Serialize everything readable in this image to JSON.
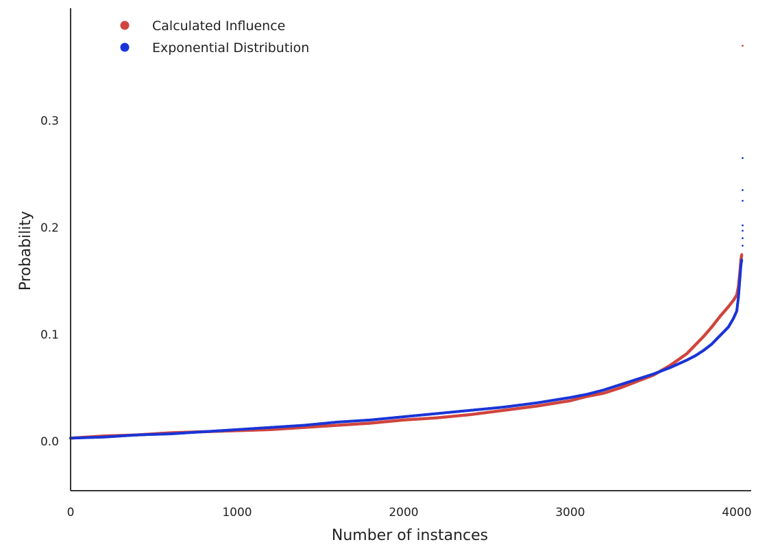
{
  "chart_data": {
    "type": "scatter",
    "xlabel": "Number of instances",
    "ylabel": "Probability",
    "xlim": [
      0,
      4100
    ],
    "ylim": [
      -0.047,
      0.405
    ],
    "xticks": [
      0,
      1000,
      2000,
      3000,
      4000
    ],
    "xtick_labels": [
      "0",
      "1000",
      "2000",
      "3000",
      "4000"
    ],
    "yticks": [
      0.0,
      0.1,
      0.2,
      0.3
    ],
    "ytick_labels": [
      "0.0",
      "0.1",
      "0.2",
      "0.3"
    ],
    "grid": false,
    "legend_position": "top-left",
    "series": [
      {
        "name": "Calculated Influence",
        "color": "#d0453f",
        "x": [
          0,
          200,
          400,
          600,
          800,
          1000,
          1200,
          1400,
          1600,
          1800,
          2000,
          2200,
          2400,
          2600,
          2800,
          3000,
          3100,
          3200,
          3300,
          3400,
          3500,
          3600,
          3700,
          3750,
          3800,
          3850,
          3900,
          3950,
          3980,
          4000,
          4010,
          4020,
          4025,
          4030
        ],
        "y": [
          0.003,
          0.005,
          0.006,
          0.008,
          0.009,
          0.01,
          0.011,
          0.013,
          0.015,
          0.017,
          0.02,
          0.022,
          0.025,
          0.029,
          0.033,
          0.038,
          0.042,
          0.045,
          0.05,
          0.056,
          0.062,
          0.071,
          0.082,
          0.09,
          0.098,
          0.107,
          0.117,
          0.126,
          0.132,
          0.137,
          0.145,
          0.16,
          0.17,
          0.175
        ]
      },
      {
        "name": "Exponential Distribution",
        "color": "#1a35d6",
        "x": [
          0,
          200,
          400,
          600,
          800,
          1000,
          1200,
          1400,
          1600,
          1800,
          2000,
          2200,
          2400,
          2600,
          2800,
          3000,
          3100,
          3200,
          3300,
          3400,
          3500,
          3600,
          3700,
          3750,
          3800,
          3850,
          3900,
          3950,
          3980,
          4000,
          4010,
          4020,
          4025,
          4030
        ],
        "y": [
          0.003,
          0.004,
          0.006,
          0.007,
          0.009,
          0.011,
          0.013,
          0.015,
          0.018,
          0.02,
          0.023,
          0.026,
          0.029,
          0.032,
          0.036,
          0.041,
          0.044,
          0.048,
          0.053,
          0.058,
          0.063,
          0.069,
          0.076,
          0.08,
          0.085,
          0.091,
          0.099,
          0.107,
          0.115,
          0.122,
          0.135,
          0.155,
          0.165,
          0.17
        ]
      }
    ],
    "outliers": [
      {
        "series": "Calculated Influence",
        "color": "#d0453f",
        "x": 4035,
        "y": 0.37
      },
      {
        "series": "Exponential Distribution",
        "color": "#1a35d6",
        "x": 4035,
        "y": 0.265
      },
      {
        "series": "Exponential Distribution",
        "color": "#1a35d6",
        "x": 4035,
        "y": 0.235
      },
      {
        "series": "Exponential Distribution",
        "color": "#1a35d6",
        "x": 4035,
        "y": 0.225
      },
      {
        "series": "Exponential Distribution",
        "color": "#1a35d6",
        "x": 4035,
        "y": 0.202
      },
      {
        "series": "Exponential Distribution",
        "color": "#1a35d6",
        "x": 4035,
        "y": 0.197
      },
      {
        "series": "Exponential Distribution",
        "color": "#1a35d6",
        "x": 4035,
        "y": 0.19
      },
      {
        "series": "Exponential Distribution",
        "color": "#1a35d6",
        "x": 4035,
        "y": 0.183
      }
    ]
  }
}
